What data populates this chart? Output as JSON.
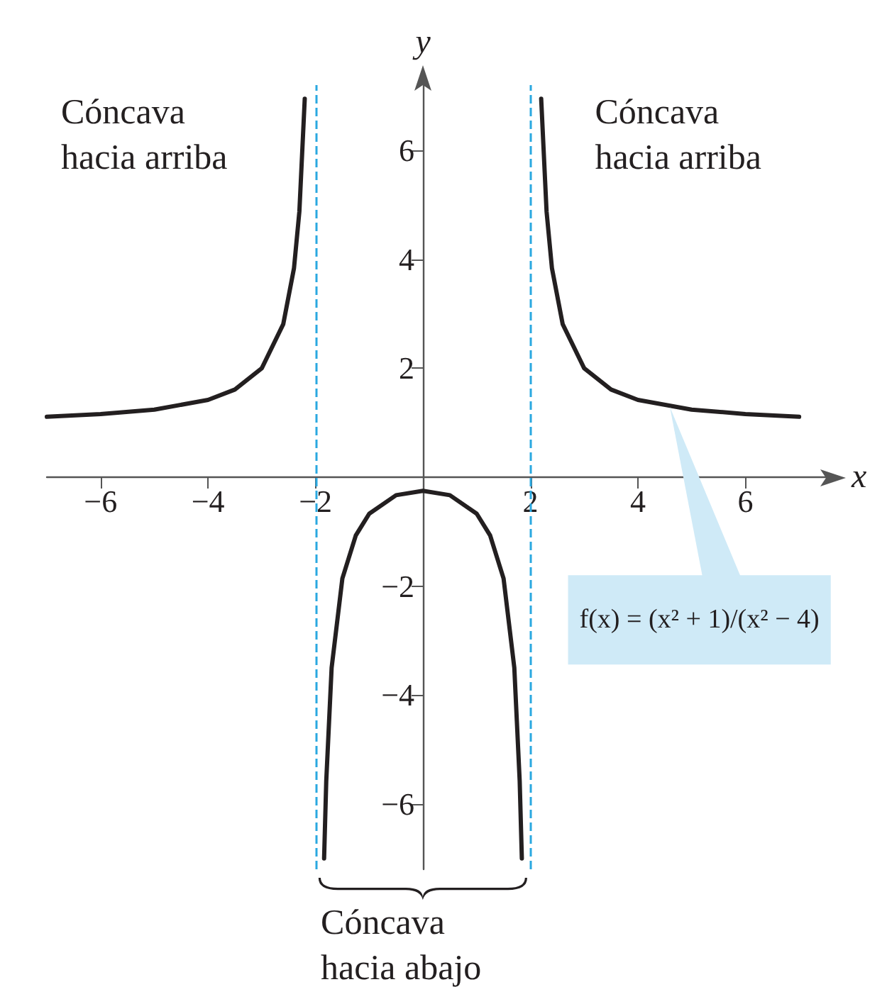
{
  "chart_data": {
    "type": "line",
    "xlabel": "x",
    "ylabel": "y",
    "xlim": [
      -7,
      7.5
    ],
    "ylim": [
      -7.2,
      7.2
    ],
    "xticks": [
      -6,
      -4,
      -2,
      2,
      4,
      6
    ],
    "yticks": [
      -6,
      -4,
      -2,
      2,
      4,
      6
    ],
    "series": [
      {
        "color": "#231f20",
        "x": [
          -7,
          -6,
          -5,
          -4,
          -3.5,
          -3,
          -2.6,
          -2.4,
          -2.3,
          -2.2
        ],
        "values": [
          1.11,
          1.16,
          1.24,
          1.42,
          1.61,
          2,
          2.81,
          3.84,
          4.88,
          6.95
        ]
      },
      {
        "color": "#231f20",
        "x": [
          -1.84,
          -1.8,
          -1.7,
          -1.5,
          -1.25,
          -1,
          -0.5,
          0,
          0.5,
          1,
          1.25,
          1.5,
          1.7,
          1.8,
          1.84
        ],
        "values": [
          -7,
          -5.58,
          -3.5,
          -1.86,
          -1.07,
          -0.67,
          -0.33,
          -0.25,
          -0.33,
          -0.67,
          -1.07,
          -1.86,
          -3.5,
          -5.58,
          -7
        ]
      },
      {
        "color": "#231f20",
        "x": [
          2.2,
          2.3,
          2.4,
          2.6,
          3,
          3.5,
          4,
          5,
          6,
          7
        ],
        "values": [
          6.95,
          4.88,
          3.84,
          2.81,
          2,
          1.61,
          1.42,
          1.24,
          1.16,
          1.11
        ]
      }
    ],
    "ref_lines": [
      {
        "axis": "x",
        "value": -2,
        "color": "#2aa8e0",
        "line_style": "dashed"
      },
      {
        "axis": "x",
        "value": 2,
        "color": "#2aa8e0",
        "line_style": "dashed"
      }
    ],
    "annotations": [
      "Cóncava hacia arriba",
      "Cóncava hacia arriba",
      "Cóncava hacia abajo",
      {
        "text": "f(x) = (x² + 1)/(x² − 4)",
        "x": 4.6,
        "y": 1.3
      }
    ],
    "marker": "none",
    "line_style": "solid"
  }
}
